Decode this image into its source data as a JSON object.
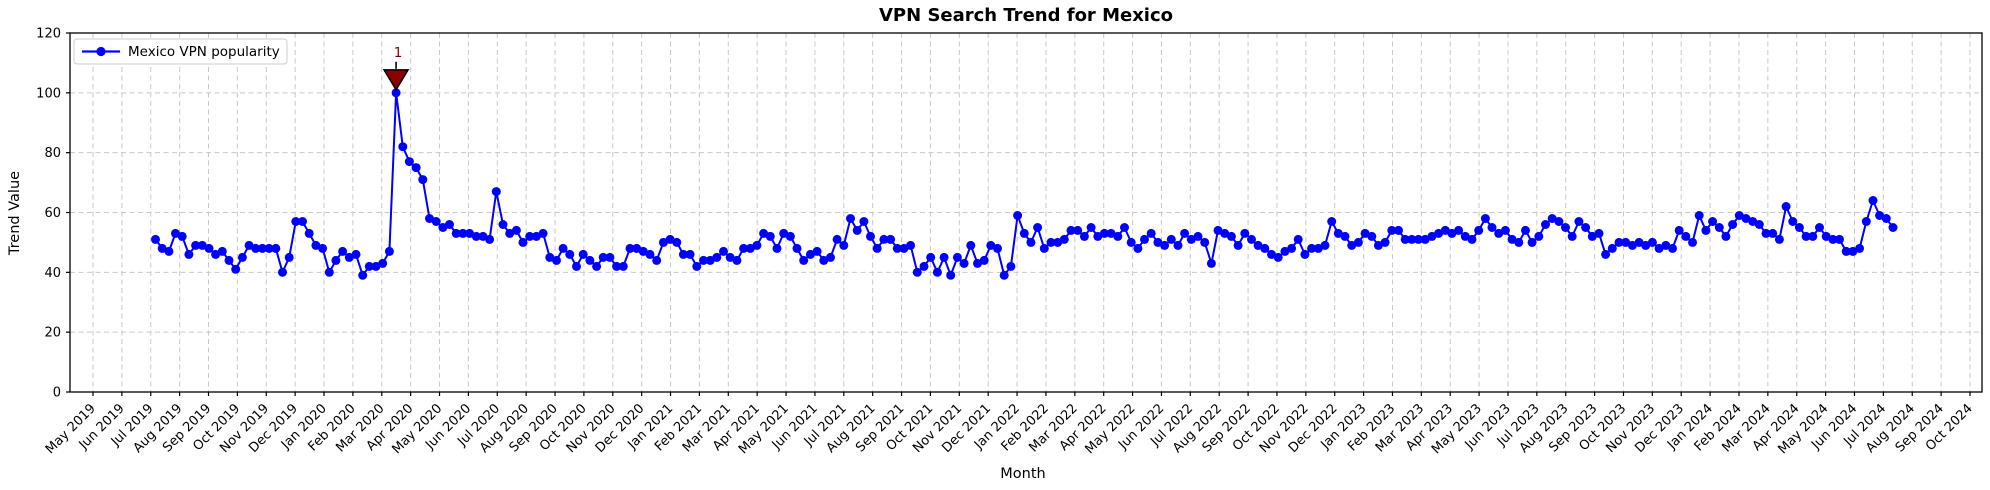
{
  "title": "VPN Search Trend for Mexico",
  "x_axis_label": "Month",
  "y_axis_label": "Trend Value",
  "legend": {
    "label": "Mexico VPN popularity",
    "position": "upper left"
  },
  "annotation": {
    "text": "1",
    "week_index": 36,
    "value": 100
  },
  "colors": {
    "line": "#0000ff",
    "marker": "#0000ff",
    "annotation": "#8b0000",
    "annotation_edge": "#000000",
    "grid": "#c9c9c9",
    "axis": "#000000",
    "background": "#ffffff"
  },
  "chart_data": {
    "type": "line",
    "title": "VPN Search Trend for Mexico",
    "xlabel": "Month",
    "ylabel": "Trend Value",
    "ylim": [
      0,
      120
    ],
    "y_ticks": [
      0,
      20,
      40,
      60,
      80,
      100,
      120
    ],
    "grid": true,
    "legend_position": "upper left",
    "interval": "weekly",
    "x_range_shown": "Jul 2019 - Jul 2024",
    "points": 261,
    "x_ticks": [
      "May 2019",
      "Jun 2019",
      "Jul 2019",
      "Aug 2019",
      "Sep 2019",
      "Oct 2019",
      "Nov 2019",
      "Dec 2019",
      "Jan 2020",
      "Feb 2020",
      "Mar 2020",
      "Apr 2020",
      "May 2020",
      "Jun 2020",
      "Jul 2020",
      "Aug 2020",
      "Sep 2020",
      "Oct 2020",
      "Nov 2020",
      "Dec 2020",
      "Jan 2021",
      "Feb 2021",
      "Mar 2021",
      "Apr 2021",
      "May 2021",
      "Jun 2021",
      "Jul 2021",
      "Aug 2021",
      "Sep 2021",
      "Oct 2021",
      "Nov 2021",
      "Dec 2021",
      "Jan 2022",
      "Feb 2022",
      "Mar 2022",
      "Apr 2022",
      "May 2022",
      "Jun 2022",
      "Jul 2022",
      "Aug 2022",
      "Sep 2022",
      "Oct 2022",
      "Nov 2022",
      "Dec 2022",
      "Jan 2023",
      "Feb 2023",
      "Mar 2023",
      "Apr 2023",
      "May 2023",
      "Jun 2023",
      "Jul 2023",
      "Aug 2023",
      "Sep 2023",
      "Oct 2023",
      "Nov 2023",
      "Dec 2023",
      "Jan 2024",
      "Feb 2024",
      "Mar 2024",
      "Apr 2024",
      "May 2024",
      "Jun 2024",
      "Jul 2024",
      "Aug 2024",
      "Sep 2024",
      "Oct 2024"
    ],
    "series": [
      {
        "name": "Mexico VPN popularity",
        "values": [
          51,
          48,
          47,
          53,
          52,
          46,
          49,
          49,
          48,
          46,
          47,
          44,
          41,
          45,
          49,
          48,
          48,
          48,
          48,
          40,
          45,
          57,
          57,
          53,
          49,
          48,
          40,
          44,
          47,
          45,
          46,
          39,
          42,
          42,
          43,
          47,
          100,
          82,
          77,
          75,
          71,
          58,
          57,
          55,
          56,
          53,
          53,
          53,
          52,
          52,
          51,
          67,
          56,
          53,
          54,
          50,
          52,
          52,
          53,
          45,
          44,
          48,
          46,
          42,
          46,
          44,
          42,
          45,
          45,
          42,
          42,
          48,
          48,
          47,
          46,
          44,
          50,
          51,
          50,
          46,
          46,
          42,
          44,
          44,
          45,
          47,
          45,
          44,
          48,
          48,
          49,
          53,
          52,
          48,
          53,
          52,
          48,
          44,
          46,
          47,
          44,
          45,
          51,
          49,
          58,
          54,
          57,
          52,
          48,
          51,
          51,
          48,
          48,
          49,
          40,
          42,
          45,
          40,
          45,
          39,
          45,
          43,
          49,
          43,
          44,
          49,
          48,
          39,
          42,
          59,
          53,
          50,
          55,
          48,
          50,
          50,
          51,
          54,
          54,
          52,
          55,
          52,
          53,
          53,
          52,
          55,
          50,
          48,
          51,
          53,
          50,
          49,
          51,
          49,
          53,
          51,
          52,
          50,
          43,
          54,
          53,
          52,
          49,
          53,
          51,
          49,
          48,
          46,
          45,
          47,
          48,
          51,
          46,
          48,
          48,
          49,
          57,
          53,
          52,
          49,
          50,
          53,
          52,
          49,
          50,
          54,
          54,
          51,
          51,
          51,
          51,
          52,
          53,
          54,
          53,
          54,
          52,
          51,
          54,
          58,
          55,
          53,
          54,
          51,
          50,
          54,
          50,
          52,
          56,
          58,
          57,
          55,
          52,
          57,
          55,
          52,
          53,
          46,
          48,
          50,
          50,
          49,
          50,
          49,
          50,
          48,
          49,
          48,
          54,
          52,
          50,
          59,
          54,
          57,
          55,
          52,
          56,
          59,
          58,
          57,
          56,
          53,
          53,
          51,
          62,
          57,
          55,
          52,
          52,
          55,
          52,
          51,
          51,
          47,
          47,
          48,
          57,
          64,
          59,
          58,
          55
        ]
      }
    ]
  }
}
